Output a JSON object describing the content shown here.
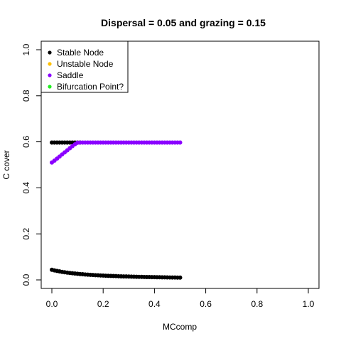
{
  "chart_data": {
    "type": "scatter",
    "title": "Dispersal =  0.05 and grazing = 0.15",
    "xlabel": "MCcomp",
    "ylabel": "C cover",
    "xlim": [
      0,
      1
    ],
    "ylim": [
      0,
      1
    ],
    "x_ticks": [
      "0.0",
      "0.2",
      "0.4",
      "0.6",
      "0.8",
      "1.0"
    ],
    "y_ticks": [
      "0.0",
      "0.2",
      "0.4",
      "0.6",
      "0.8",
      "1.0"
    ],
    "grid": false,
    "legend_position": "top-left",
    "legend": [
      {
        "label": "Stable Node",
        "color": "#000000"
      },
      {
        "label": "Unstable Node",
        "color": "#FFC000"
      },
      {
        "label": "Saddle",
        "color": "#8B00FF"
      },
      {
        "label": "Bifurcation Point?",
        "color": "#22EE22"
      }
    ],
    "series": [
      {
        "name": "Stable Node",
        "color": "#000000",
        "segments": [
          {
            "x": [
              0.0,
              0.01,
              0.02,
              0.03,
              0.04,
              0.05,
              0.06,
              0.07,
              0.08,
              0.09,
              0.1,
              0.11
            ],
            "y": [
              0.597,
              0.597,
              0.597,
              0.597,
              0.597,
              0.597,
              0.597,
              0.597,
              0.597,
              0.597,
              0.597,
              0.597
            ]
          },
          {
            "x": [
              0.0,
              0.01,
              0.02,
              0.03,
              0.04,
              0.05,
              0.06,
              0.07,
              0.08,
              0.09,
              0.1,
              0.11,
              0.12,
              0.13,
              0.14,
              0.15,
              0.16,
              0.17,
              0.18,
              0.19,
              0.2,
              0.21,
              0.22,
              0.23,
              0.24,
              0.25,
              0.26,
              0.27,
              0.28,
              0.29,
              0.3,
              0.31,
              0.32,
              0.33,
              0.34,
              0.35,
              0.36,
              0.37,
              0.38,
              0.39,
              0.4,
              0.41,
              0.42,
              0.43,
              0.44,
              0.45,
              0.46,
              0.47,
              0.48,
              0.49,
              0.5
            ],
            "y": [
              0.044,
              0.0414,
              0.039,
              0.0369,
              0.0349,
              0.0332,
              0.0316,
              0.0301,
              0.0288,
              0.0276,
              0.0265,
              0.0254,
              0.0245,
              0.0236,
              0.0228,
              0.022,
              0.0213,
              0.0206,
              0.02,
              0.0194,
              0.0188,
              0.0183,
              0.0178,
              0.0173,
              0.0168,
              0.0164,
              0.016,
              0.0156,
              0.0152,
              0.0149,
              0.0145,
              0.0142,
              0.0139,
              0.0136,
              0.0133,
              0.013,
              0.0128,
              0.0125,
              0.0123,
              0.012,
              0.0118,
              0.0116,
              0.0114,
              0.0112,
              0.011,
              0.0108,
              0.0106,
              0.0105,
              0.0103,
              0.0101,
              0.01
            ]
          }
        ]
      },
      {
        "name": "Saddle",
        "color": "#8B00FF",
        "segments": [
          {
            "x": [
              0.0,
              0.01,
              0.02,
              0.03,
              0.04,
              0.05,
              0.06,
              0.07,
              0.08,
              0.09,
              0.1,
              0.11,
              0.12,
              0.13,
              0.14,
              0.15,
              0.16,
              0.17,
              0.18,
              0.19,
              0.2,
              0.21,
              0.22,
              0.23,
              0.24,
              0.25,
              0.26,
              0.27,
              0.28,
              0.29,
              0.3,
              0.31,
              0.32,
              0.33,
              0.34,
              0.35,
              0.36,
              0.37,
              0.38,
              0.39,
              0.4,
              0.41,
              0.42,
              0.43,
              0.44,
              0.45,
              0.46,
              0.47,
              0.48,
              0.49,
              0.5
            ],
            "y": [
              0.51,
              0.518,
              0.527,
              0.536,
              0.545,
              0.554,
              0.563,
              0.572,
              0.581,
              0.589,
              0.596,
              0.597,
              0.597,
              0.597,
              0.597,
              0.597,
              0.597,
              0.597,
              0.597,
              0.597,
              0.597,
              0.597,
              0.597,
              0.597,
              0.597,
              0.597,
              0.597,
              0.597,
              0.597,
              0.597,
              0.597,
              0.597,
              0.597,
              0.597,
              0.597,
              0.597,
              0.597,
              0.597,
              0.597,
              0.597,
              0.597,
              0.597,
              0.597,
              0.597,
              0.597,
              0.597,
              0.597,
              0.597,
              0.597,
              0.597,
              0.597
            ]
          }
        ]
      }
    ]
  }
}
